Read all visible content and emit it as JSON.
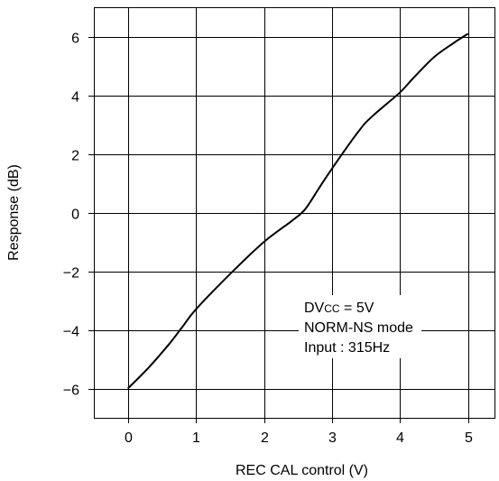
{
  "chart_data": {
    "type": "line",
    "title": "",
    "xlabel": "REC CAL control (V)",
    "ylabel": "Response (dB)",
    "xlim": [
      -0.5,
      5.4
    ],
    "ylim": [
      -7,
      7
    ],
    "x_ticks": [
      0,
      1,
      2,
      3,
      4,
      5
    ],
    "x_tick_labels": [
      "0",
      "1",
      "2",
      "3",
      "4",
      "5"
    ],
    "y_ticks": [
      -6,
      -4,
      -2,
      0,
      2,
      4,
      6
    ],
    "y_tick_labels": [
      "−6",
      "−4",
      "−2",
      "0",
      "2",
      "4",
      "6"
    ],
    "grid": true,
    "legend": "none",
    "series": [
      {
        "x": [
          0,
          0.3,
          0.6,
          0.8,
          1.0,
          1.5,
          2.0,
          2.4,
          2.6,
          2.8,
          3.0,
          3.4,
          3.6,
          4.0,
          4.2,
          4.5,
          4.8,
          5.0
        ],
        "y": [
          -6.0,
          -5.3,
          -4.5,
          -3.9,
          -3.3,
          -2.1,
          -1.0,
          -0.3,
          0.1,
          0.8,
          1.5,
          2.8,
          3.3,
          4.1,
          4.6,
          5.3,
          5.8,
          6.1
        ],
        "color": "#000000"
      }
    ],
    "annotation": {
      "lines": [
        "DVcc = 5V",
        "NORM-NS mode",
        "Input : 315Hz"
      ]
    }
  }
}
